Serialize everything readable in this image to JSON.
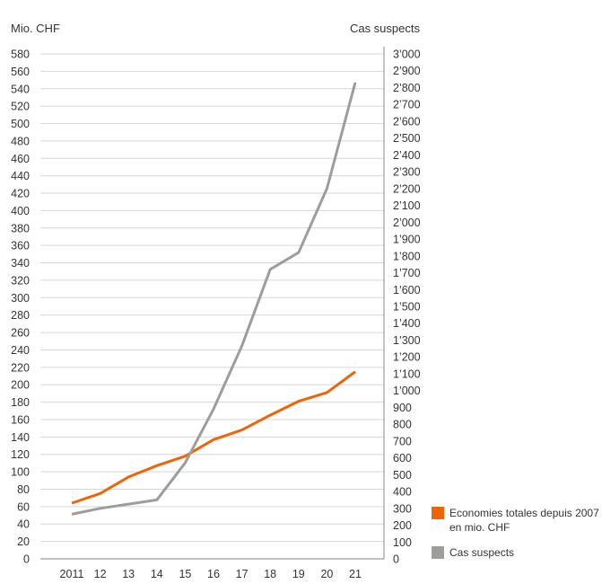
{
  "chart_data": {
    "type": "line",
    "x_labels": [
      "2011",
      "12",
      "13",
      "14",
      "15",
      "16",
      "17",
      "18",
      "19",
      "20",
      "21"
    ],
    "left_axis": {
      "title": "Mio. CHF",
      "range": [
        0,
        580
      ],
      "ticks": [
        "0",
        "20",
        "40",
        "60",
        "80",
        "100",
        "120",
        "140",
        "160",
        "180",
        "200",
        "220",
        "240",
        "260",
        "280",
        "300",
        "320",
        "340",
        "360",
        "380",
        "400",
        "420",
        "440",
        "460",
        "480",
        "500",
        "520",
        "540",
        "560",
        "580"
      ]
    },
    "right_axis": {
      "title": "Cas suspects",
      "range": [
        0,
        3000
      ],
      "ticks": [
        "0",
        "100",
        "200",
        "300",
        "400",
        "500",
        "600",
        "700",
        "800",
        "900",
        "1’000",
        "1’100",
        "1’200",
        "1’300",
        "1’400",
        "1’500",
        "1’600",
        "1’700",
        "1’800",
        "1’900",
        "2’000",
        "2’100",
        "2’200",
        "2’300",
        "2’400",
        "2’500",
        "2’600",
        "2’700",
        "2’800",
        "2’900",
        "3’000"
      ]
    },
    "series": [
      {
        "name": "Economies totales depuis 2007 en mio. CHF",
        "axis": "left",
        "color": "#ec6608",
        "values": [
          64,
          75,
          94,
          107,
          118,
          137,
          148,
          165,
          181,
          191,
          215
        ]
      },
      {
        "name": "Cas suspects",
        "axis": "right",
        "color": "#9d9d9c",
        "values": [
          265,
          300,
          325,
          350,
          570,
          890,
          1265,
          1720,
          1820,
          2200,
          2830
        ]
      }
    ],
    "grid": "horizontal",
    "legend_position": "bottom-right"
  }
}
